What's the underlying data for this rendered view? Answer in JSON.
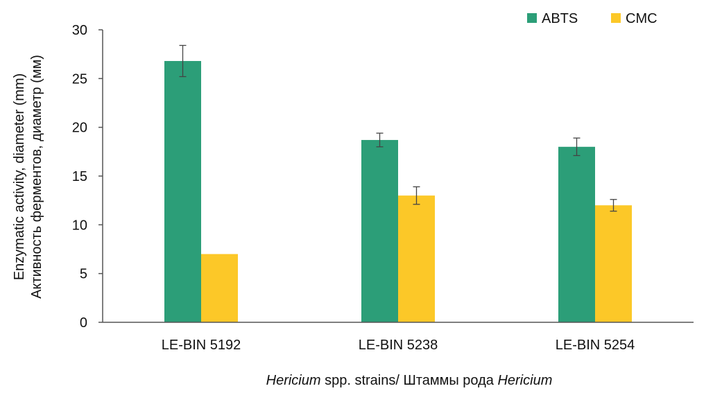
{
  "chart_data": {
    "type": "bar",
    "title": "",
    "xlabel_parts": [
      {
        "text": "Hericium",
        "italic": true
      },
      {
        "text": " spp. strains/ Штаммы рода ",
        "italic": false
      },
      {
        "text": "Hericium",
        "italic": true
      }
    ],
    "ylabel_lines": [
      "Enzymatic activity, diameter (mm)",
      "Активность ферментов, диаметр (мм)"
    ],
    "categories": [
      "LE-BIN 5192",
      "LE-BIN 5238",
      "LE-BIN 5254"
    ],
    "series": [
      {
        "name": "ABTS",
        "color": "#2c9e78",
        "values": [
          26.8,
          18.7,
          18.0
        ],
        "errors": [
          1.6,
          0.7,
          0.9
        ]
      },
      {
        "name": "CMC",
        "color": "#fcc828",
        "values": [
          7.0,
          13.0,
          12.0
        ],
        "errors": [
          0,
          0.9,
          0.6
        ]
      }
    ],
    "ylim": [
      0,
      30
    ],
    "yticks": [
      0,
      5,
      10,
      15,
      20,
      25,
      30
    ],
    "grid": false,
    "legend_position": "top-right"
  }
}
